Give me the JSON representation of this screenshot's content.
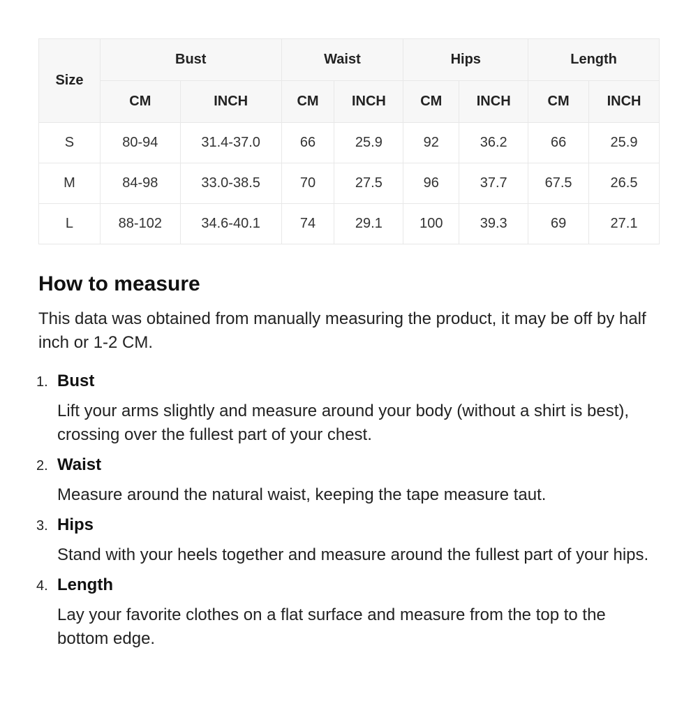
{
  "table": {
    "size_header": "Size",
    "groups": [
      "Bust",
      "Waist",
      "Hips",
      "Length"
    ],
    "units": [
      "CM",
      "INCH",
      "CM",
      "INCH",
      "CM",
      "INCH",
      "CM",
      "INCH"
    ],
    "rows": [
      [
        "S",
        "80-94",
        "31.4-37.0",
        "66",
        "25.9",
        "92",
        "36.2",
        "66",
        "25.9"
      ],
      [
        "M",
        "84-98",
        "33.0-38.5",
        "70",
        "27.5",
        "96",
        "37.7",
        "67.5",
        "26.5"
      ],
      [
        "L",
        "88-102",
        "34.6-40.1",
        "74",
        "29.1",
        "100",
        "39.3",
        "69",
        "27.1"
      ]
    ]
  },
  "guide": {
    "title": "How to measure",
    "intro": "This data was obtained from manually measuring the product, it may be off by half inch or 1-2 CM.",
    "steps": [
      {
        "num": "1.",
        "title": "Bust",
        "text": "Lift your arms slightly and measure around your body (without a shirt is best), crossing over the fullest part of your chest."
      },
      {
        "num": "2.",
        "title": "Waist",
        "text": "Measure around the natural waist, keeping the tape measure taut."
      },
      {
        "num": "3.",
        "title": "Hips",
        "text": "Stand with your heels together and measure around the fullest part of your hips."
      },
      {
        "num": "4.",
        "title": "Length",
        "text": "Lay your favorite clothes on a flat surface and measure from the top to the bottom edge."
      }
    ]
  }
}
